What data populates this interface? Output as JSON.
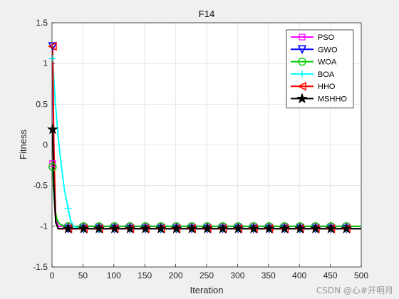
{
  "watermark": "CSDN @心#开明月",
  "chart_data": {
    "type": "line",
    "title": "F14",
    "xlabel": "Iteration",
    "ylabel": "Fitness",
    "xlim": [
      0,
      500
    ],
    "ylim": [
      -1.5,
      1.5
    ],
    "xticks": [
      0,
      50,
      100,
      150,
      200,
      250,
      300,
      350,
      400,
      450,
      500
    ],
    "yticks": [
      -1.5,
      -1,
      -0.5,
      0,
      0.5,
      1,
      1.5
    ],
    "grid": true,
    "legend_position": "top-right",
    "marker_x": [
      1,
      26,
      51,
      76,
      101,
      126,
      151,
      176,
      201,
      226,
      251,
      276,
      301,
      326,
      351,
      376,
      401,
      426,
      451,
      476
    ],
    "series": [
      {
        "name": "PSO",
        "color": "#ff00ff",
        "marker": "square",
        "x": [
          1,
          5,
          10,
          20,
          30,
          500
        ],
        "y": [
          -0.23,
          -0.85,
          -1.0,
          -1.0,
          -1.0,
          -1.0
        ]
      },
      {
        "name": "GWO",
        "color": "#0000ff",
        "marker": "triangle-down",
        "x": [
          1,
          3,
          6,
          10,
          20,
          500
        ],
        "y": [
          1.21,
          -0.4,
          -0.95,
          -1.03,
          -1.03,
          -1.03
        ]
      },
      {
        "name": "WOA",
        "color": "#00cc00",
        "marker": "circle",
        "x": [
          1,
          3,
          5,
          8,
          12,
          20,
          500
        ],
        "y": [
          -0.27,
          -0.6,
          -0.8,
          -0.92,
          -0.97,
          -1.0,
          -1.0
        ]
      },
      {
        "name": "BOA",
        "color": "#00ffff",
        "marker": "plus",
        "x": [
          1,
          5,
          10,
          15,
          20,
          26,
          30,
          35,
          45,
          500
        ],
        "y": [
          1.06,
          0.55,
          0.1,
          -0.25,
          -0.55,
          -0.78,
          -0.93,
          -1.0,
          -1.03,
          -1.03
        ]
      },
      {
        "name": "HHO",
        "color": "#ff0000",
        "marker": "triangle-left",
        "x": [
          1,
          3,
          6,
          10,
          500
        ],
        "y": [
          1.21,
          0.0,
          -0.95,
          -1.03,
          -1.03
        ]
      },
      {
        "name": "MSHHO",
        "color": "#000000",
        "marker": "star",
        "x": [
          1,
          3,
          6,
          10,
          500
        ],
        "y": [
          0.19,
          -0.5,
          -0.95,
          -1.03,
          -1.03
        ]
      }
    ]
  }
}
